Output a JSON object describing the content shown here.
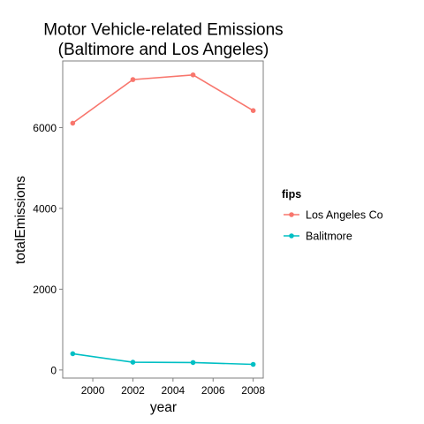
{
  "chart_data": {
    "type": "line",
    "title_line1": "Motor Vehicle-related Emissions",
    "title_line2": "(Baltimore and Los Angeles)",
    "xlabel": "year",
    "ylabel": "totalEmissions",
    "xlim": [
      1998.5,
      2008.5
    ],
    "ylim": [
      -200,
      7650
    ],
    "x_ticks": [
      2000,
      2002,
      2004,
      2006,
      2008
    ],
    "y_ticks": [
      0,
      2000,
      4000,
      6000
    ],
    "grid": false,
    "legend": {
      "title": "fips",
      "position": "right"
    },
    "x": [
      1999,
      2002,
      2005,
      2008
    ],
    "series": [
      {
        "name": "Los Angeles Co",
        "color": "#F8766D",
        "values": [
          6110,
          7189,
          7305,
          6421
        ]
      },
      {
        "name": "Balitmore",
        "color": "#00BFC4",
        "values": [
          403,
          192,
          185,
          139
        ]
      }
    ]
  }
}
